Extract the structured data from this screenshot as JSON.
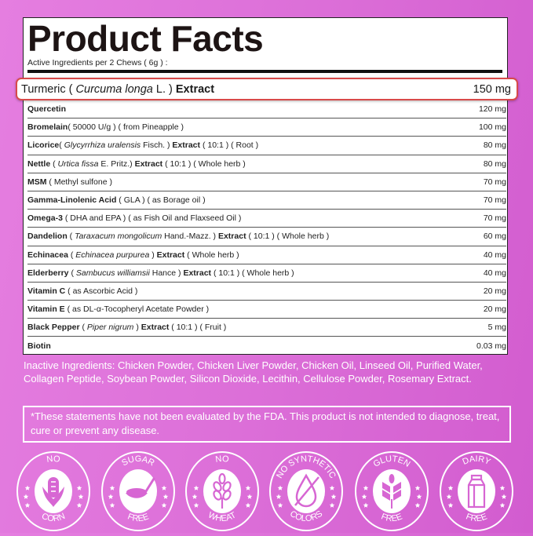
{
  "title": "Product Facts",
  "subtitle": "Active Ingredients per 2 Chews ( 6g ) :",
  "highlight": {
    "parts": [
      {
        "t": "Turmeric ( ",
        "s": ""
      },
      {
        "t": "Curcuma longa",
        "s": "i"
      },
      {
        "t": " L. ) ",
        "s": ""
      },
      {
        "t": "Extract",
        "s": "b"
      }
    ],
    "amount": "150 mg",
    "border_color": "#d84a4a"
  },
  "ingredients": [
    {
      "parts": [
        {
          "t": "Quercetin",
          "s": "b"
        }
      ],
      "amount": "120 mg"
    },
    {
      "parts": [
        {
          "t": "Bromelain",
          "s": "b"
        },
        {
          "t": "( 50000 U/g ) ( from Pineapple )",
          "s": ""
        }
      ],
      "amount": "100 mg"
    },
    {
      "parts": [
        {
          "t": "Licorice",
          "s": "b"
        },
        {
          "t": "( ",
          "s": ""
        },
        {
          "t": "Glycyrrhiza uralensis",
          "s": "i"
        },
        {
          "t": " Fisch. ) ",
          "s": ""
        },
        {
          "t": "Extract",
          "s": "b"
        },
        {
          "t": " ( 10:1 ) ( Root )",
          "s": ""
        }
      ],
      "amount": "80 mg"
    },
    {
      "parts": [
        {
          "t": "Nettle",
          "s": "b"
        },
        {
          "t": " ( ",
          "s": ""
        },
        {
          "t": "Urtica fissa",
          "s": "i"
        },
        {
          "t": " E. Pritz.) ",
          "s": ""
        },
        {
          "t": "Extract",
          "s": "b"
        },
        {
          "t": " ( 10:1 ) ( Whole herb )",
          "s": ""
        }
      ],
      "amount": "80 mg"
    },
    {
      "parts": [
        {
          "t": "MSM",
          "s": "b"
        },
        {
          "t": " ( Methyl sulfone )",
          "s": ""
        }
      ],
      "amount": "70 mg"
    },
    {
      "parts": [
        {
          "t": "Gamma-Linolenic Acid",
          "s": "b"
        },
        {
          "t": " ( GLA ) ( as Borage oil )",
          "s": ""
        }
      ],
      "amount": "70 mg"
    },
    {
      "parts": [
        {
          "t": "Omega-3",
          "s": "b"
        },
        {
          "t": " ( DHA and EPA ) ( as Fish Oil and Flaxseed Oil )",
          "s": ""
        }
      ],
      "amount": "70 mg"
    },
    {
      "parts": [
        {
          "t": "Dandelion",
          "s": "b"
        },
        {
          "t": " ( ",
          "s": ""
        },
        {
          "t": "Taraxacum mongolicum",
          "s": "i"
        },
        {
          "t": " Hand.-Mazz. ) ",
          "s": ""
        },
        {
          "t": "Extract",
          "s": "b"
        },
        {
          "t": " ( 10:1 ) ( Whole herb )",
          "s": ""
        }
      ],
      "amount": "60 mg"
    },
    {
      "parts": [
        {
          "t": "Echinacea",
          "s": "b"
        },
        {
          "t": " ( ",
          "s": ""
        },
        {
          "t": "Echinacea purpurea",
          "s": "i"
        },
        {
          "t": " ) ",
          "s": ""
        },
        {
          "t": "Extract",
          "s": "b"
        },
        {
          "t": " ( Whole herb )",
          "s": ""
        }
      ],
      "amount": "40 mg"
    },
    {
      "parts": [
        {
          "t": "Elderberry",
          "s": "b"
        },
        {
          "t": " ( ",
          "s": ""
        },
        {
          "t": "Sambucus williamsii",
          "s": "i"
        },
        {
          "t": " Hance ) ",
          "s": ""
        },
        {
          "t": "Extract",
          "s": "b"
        },
        {
          "t": " ( 10:1 ) ( Whole herb )",
          "s": ""
        }
      ],
      "amount": "40 mg"
    },
    {
      "parts": [
        {
          "t": "Vitamin C",
          "s": "b"
        },
        {
          "t": " ( as Ascorbic Acid )",
          "s": ""
        }
      ],
      "amount": "20 mg"
    },
    {
      "parts": [
        {
          "t": "Vitamin E",
          "s": "b"
        },
        {
          "t": " ( as DL-α-Tocopheryl Acetate Powder )",
          "s": ""
        }
      ],
      "amount": "20 mg"
    },
    {
      "parts": [
        {
          "t": "Black Pepper",
          "s": "b"
        },
        {
          "t": " ( ",
          "s": ""
        },
        {
          "t": "Piper nigrum",
          "s": "i"
        },
        {
          "t": " ) ",
          "s": ""
        },
        {
          "t": "Extract",
          "s": "b"
        },
        {
          "t": " ( 10:1 ) ( Fruit )",
          "s": ""
        }
      ],
      "amount": "5 mg"
    },
    {
      "parts": [
        {
          "t": "Biotin",
          "s": "b"
        }
      ],
      "amount": "0.03 mg"
    }
  ],
  "inactive": "Inactive Ingredients: Chicken Powder, Chicken Liver Powder, Chicken Oil, Linseed Oil, Purified Water, Collagen Peptide, Soybean Powder, Silicon Dioxide, Lecithin, Cellulose Powder, Rosemary Extract.",
  "disclaimer": "*These statements have not been evaluated by the FDA. This product is not intended to diagnose, treat, cure or prevent any disease.",
  "badges": [
    {
      "top": "NO",
      "bottom": "CORN",
      "icon": "corn-icon"
    },
    {
      "top": "SUGAR",
      "bottom": "FREE",
      "icon": "sugar-spoon-icon"
    },
    {
      "top": "NO",
      "bottom": "WHEAT",
      "icon": "wheat-icon"
    },
    {
      "top": "NO SYNTHETIC",
      "bottom": "COLORS",
      "icon": "crossed-drop-icon"
    },
    {
      "top": "GLUTEN",
      "bottom": "FREE",
      "icon": "grain-icon"
    },
    {
      "top": "DAIRY",
      "bottom": "FREE",
      "icon": "milk-carton-icon"
    }
  ],
  "colors": {
    "background": "#dc6fd8",
    "badge_icon": "#d766d3"
  }
}
